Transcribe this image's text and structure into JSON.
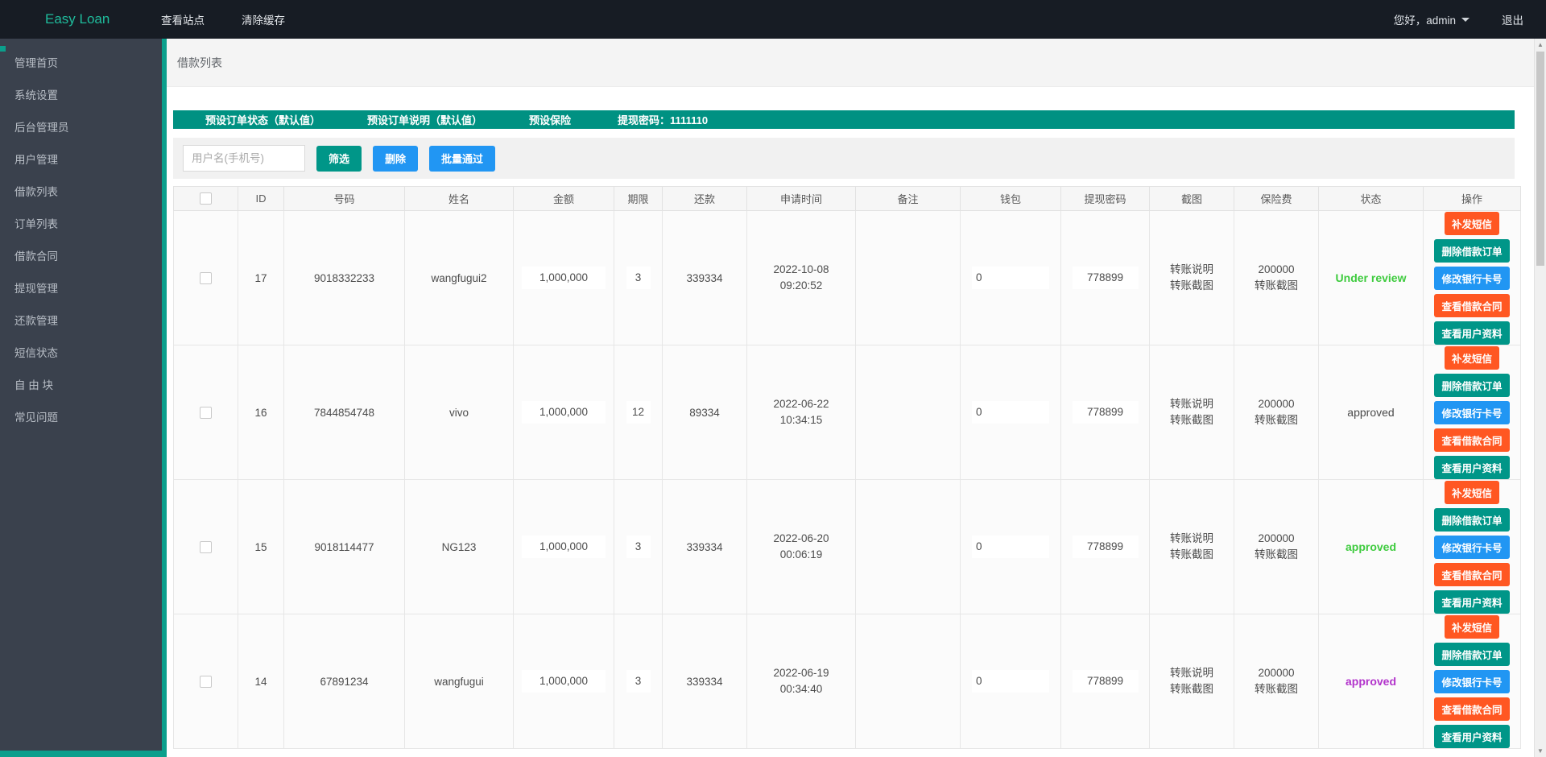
{
  "topbar": {
    "brand": "Easy Loan",
    "menu": [
      {
        "label": "查看站点"
      },
      {
        "label": "清除缓存"
      }
    ],
    "greeting": "您好，admin",
    "logout": "退出"
  },
  "sidebar": {
    "items": [
      {
        "label": "管理首页"
      },
      {
        "label": "系统设置"
      },
      {
        "label": "后台管理员"
      },
      {
        "label": "用户管理"
      },
      {
        "label": "借款列表"
      },
      {
        "label": "订单列表"
      },
      {
        "label": "借款合同"
      },
      {
        "label": "提现管理"
      },
      {
        "label": "还款管理"
      },
      {
        "label": "短信状态"
      },
      {
        "label": "自 由 块"
      },
      {
        "label": "常见问题"
      }
    ]
  },
  "page": {
    "breadcrumb": "借款列表"
  },
  "banner": {
    "color": "#009182",
    "items": [
      {
        "label": "预设订单状态（默认值）"
      },
      {
        "label": "预设订单说明（默认值）"
      },
      {
        "label": "预设保险"
      },
      {
        "label": "提现密码：1111110"
      }
    ]
  },
  "filter": {
    "placeholder": "用户名(手机号)",
    "buttons": [
      {
        "label": "筛选",
        "color": "#009688"
      },
      {
        "label": "删除",
        "color": "#2196f3"
      },
      {
        "label": "批量通过",
        "color": "#2196f3"
      }
    ]
  },
  "table": {
    "headers": [
      "ID",
      "号码",
      "姓名",
      "金额",
      "期限",
      "还款",
      "申请时间",
      "备注",
      "钱包",
      "提现密码",
      "截图",
      "保险费",
      "状态",
      "操作"
    ],
    "action_buttons": [
      {
        "label": "补发短信",
        "color": "#ff5722",
        "name": "resend-sms-button"
      },
      {
        "label": "删除借款订单",
        "color": "#009688",
        "name": "delete-loan-order-button"
      },
      {
        "label": "修改银行卡号",
        "color": "#2196f3",
        "name": "edit-bank-card-button"
      },
      {
        "label": "查看借款合同",
        "color": "#ff5722",
        "name": "view-loan-contract-button"
      },
      {
        "label": "查看用户资料",
        "color": "#009688",
        "name": "view-user-profile-button"
      }
    ],
    "rows": [
      {
        "id": "17",
        "phone": "9018332233",
        "name": "wangfugui2",
        "amount": "1,000,000",
        "period": "3",
        "repayment": "339334",
        "apply_date": "2022-10-08",
        "apply_time": "09:20:52",
        "remark": "",
        "wallet": "0",
        "withdraw_password": "778899",
        "screenshot_links": [
          "转账说明",
          "转账截图"
        ],
        "insurance_fee": "200000",
        "insurance_link": "转账截图",
        "status": "Under review",
        "status_color": "#3ecb3e",
        "status_bold": true
      },
      {
        "id": "16",
        "phone": "7844854748",
        "name": "vivo",
        "amount": "1,000,000",
        "period": "12",
        "repayment": "89334",
        "apply_date": "2022-06-22",
        "apply_time": "10:34:15",
        "remark": "",
        "wallet": "0",
        "withdraw_password": "778899",
        "screenshot_links": [
          "转账说明",
          "转账截图"
        ],
        "insurance_fee": "200000",
        "insurance_link": "转账截图",
        "status": "approved",
        "status_color": "#4a4a4a",
        "status_bold": false
      },
      {
        "id": "15",
        "phone": "9018114477",
        "name": "NG123",
        "amount": "1,000,000",
        "period": "3",
        "repayment": "339334",
        "apply_date": "2022-06-20",
        "apply_time": "00:06:19",
        "remark": "",
        "wallet": "0",
        "withdraw_password": "778899",
        "screenshot_links": [
          "转账说明",
          "转账截图"
        ],
        "insurance_fee": "200000",
        "insurance_link": "转账截图",
        "status": "approved",
        "status_color": "#3ecb3e",
        "status_bold": true
      },
      {
        "id": "14",
        "phone": "67891234",
        "name": "wangfugui",
        "amount": "1,000,000",
        "period": "3",
        "repayment": "339334",
        "apply_date": "2022-06-19",
        "apply_time": "00:34:40",
        "remark": "",
        "wallet": "0",
        "withdraw_password": "778899",
        "screenshot_links": [
          "转账说明",
          "转账截图"
        ],
        "insurance_fee": "200000",
        "insurance_link": "转账截图",
        "status": "approved",
        "status_color": "#b233cb",
        "status_bold": true
      }
    ]
  }
}
